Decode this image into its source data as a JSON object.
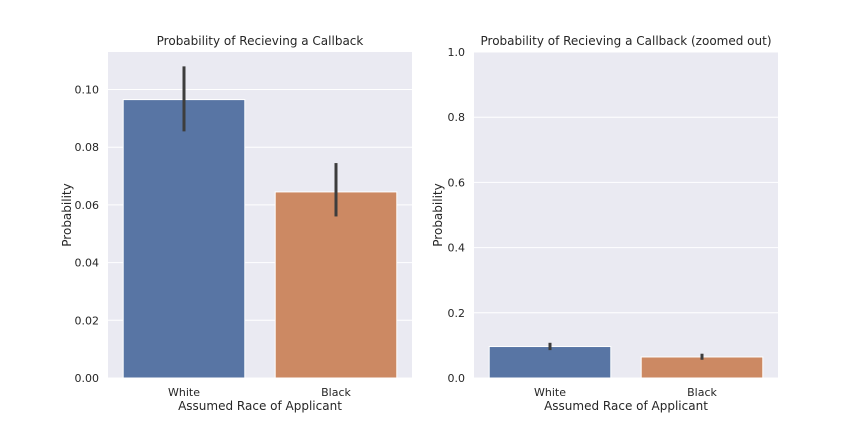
{
  "chart_data": [
    {
      "type": "bar",
      "title": "Probability of Recieving a Callback",
      "xlabel": "Assumed Race of Applicant",
      "ylabel": "Probability",
      "categories": [
        "White",
        "Black"
      ],
      "values": [
        0.0965,
        0.0645
      ],
      "error_bars": [
        [
          0.0855,
          0.108
        ],
        [
          0.056,
          0.0745
        ]
      ],
      "colors": [
        "#5875a4",
        "#cc8963"
      ],
      "ylim": [
        0,
        0.113
      ],
      "yticks": [
        0.0,
        0.02,
        0.04,
        0.06,
        0.08,
        0.1
      ],
      "ytick_labels": [
        "0.00",
        "0.02",
        "0.04",
        "0.06",
        "0.08",
        "0.10"
      ],
      "grid": true,
      "background": "#eaeaf2"
    },
    {
      "type": "bar",
      "title": "Probability of Recieving a Callback (zoomed out)",
      "xlabel": "Assumed Race of Applicant",
      "ylabel": "Probability",
      "categories": [
        "White",
        "Black"
      ],
      "values": [
        0.0965,
        0.0645
      ],
      "error_bars": [
        [
          0.0855,
          0.108
        ],
        [
          0.056,
          0.0745
        ]
      ],
      "colors": [
        "#5875a4",
        "#cc8963"
      ],
      "ylim": [
        0,
        1.0
      ],
      "yticks": [
        0.0,
        0.2,
        0.4,
        0.6,
        0.8,
        1.0
      ],
      "ytick_labels": [
        "0.0",
        "0.2",
        "0.4",
        "0.6",
        "0.8",
        "1.0"
      ],
      "grid": true,
      "background": "#eaeaf2"
    }
  ]
}
